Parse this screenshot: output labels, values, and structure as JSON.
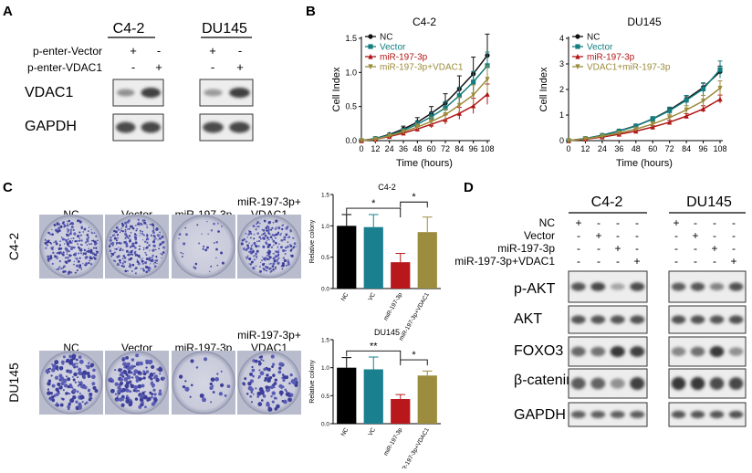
{
  "panels": {
    "a": "A",
    "b": "B",
    "c": "C",
    "d": "D"
  },
  "a": {
    "cell_lines": [
      "C4-2",
      "DU145"
    ],
    "row_labels": [
      "p-enter-Vector",
      "p-enter-VDAC1"
    ],
    "signs": [
      [
        "+",
        "-",
        "+",
        "-"
      ],
      [
        "-",
        "+",
        "-",
        "+"
      ]
    ],
    "blot_labels": [
      "VDAC1",
      "GAPDH"
    ]
  },
  "b": {
    "ylabel": "Cell Index",
    "xlabel": "Time (hours)",
    "xticks": [
      "0",
      "12",
      "24",
      "36",
      "48",
      "60",
      "72",
      "84",
      "96",
      "108"
    ],
    "colors": {
      "NC": "#111111",
      "Vector": "#137d7f",
      "miR": "#b01515",
      "combo": "#9c8c3d"
    }
  },
  "chart_data": [
    {
      "type": "line",
      "title": "C4-2",
      "xlabel": "Time (hours)",
      "ylabel": "Cell Index",
      "x": [
        0,
        12,
        24,
        36,
        48,
        60,
        72,
        84,
        96,
        108
      ],
      "ylim": [
        0,
        1.5
      ],
      "yticks": [
        "0.0",
        "0.5",
        "1.0",
        "1.5"
      ],
      "series": [
        {
          "name": "NC",
          "values": [
            0,
            0.03,
            0.09,
            0.17,
            0.27,
            0.4,
            0.55,
            0.76,
            0.98,
            1.25
          ]
        },
        {
          "name": "Vector",
          "values": [
            0,
            0.03,
            0.08,
            0.15,
            0.24,
            0.35,
            0.48,
            0.66,
            0.86,
            1.1
          ]
        },
        {
          "name": "miR-197-3p",
          "values": [
            0,
            0.02,
            0.06,
            0.11,
            0.17,
            0.24,
            0.31,
            0.4,
            0.51,
            0.68
          ]
        },
        {
          "name": "miR-197-3p+VDAC1",
          "values": [
            0,
            0.02,
            0.07,
            0.13,
            0.2,
            0.28,
            0.38,
            0.52,
            0.67,
            0.9
          ]
        }
      ],
      "legend": [
        "NC",
        "Vector",
        "miR-197-3p",
        "miR-197-3p+VDAC1"
      ]
    },
    {
      "type": "line",
      "title": "DU145",
      "xlabel": "Time (hours)",
      "ylabel": "Cell Index",
      "x": [
        0,
        12,
        24,
        36,
        48,
        60,
        72,
        84,
        96,
        108
      ],
      "ylim": [
        0,
        4
      ],
      "yticks": [
        "0",
        "1",
        "2",
        "3",
        "4"
      ],
      "series": [
        {
          "name": "NC",
          "values": [
            0,
            0.08,
            0.21,
            0.38,
            0.58,
            0.85,
            1.2,
            1.62,
            2.08,
            2.7
          ]
        },
        {
          "name": "Vector",
          "values": [
            0,
            0.08,
            0.2,
            0.37,
            0.57,
            0.84,
            1.17,
            1.58,
            2.02,
            2.78
          ]
        },
        {
          "name": "miR-197-3p",
          "values": [
            0,
            0.06,
            0.14,
            0.25,
            0.37,
            0.53,
            0.72,
            0.96,
            1.24,
            1.62
          ]
        },
        {
          "name": "VDAC1+miR-197-3p",
          "values": [
            0,
            0.07,
            0.17,
            0.3,
            0.45,
            0.65,
            0.9,
            1.2,
            1.55,
            2.05
          ]
        }
      ],
      "legend": [
        "NC",
        "Vector",
        "miR-197-3p",
        "VDAC1+miR-197-3p"
      ]
    },
    {
      "type": "bar",
      "title": "C4-2",
      "ylabel": "Relative colony",
      "categories": [
        "NC",
        "VC",
        "miR-197-3p",
        "miR-197-3p+VDAC1"
      ],
      "values": [
        1.0,
        0.98,
        0.42,
        0.9
      ],
      "errors": [
        0.18,
        0.2,
        0.14,
        0.24
      ],
      "ylim": [
        0,
        1.5
      ],
      "yticks": [
        "0.0",
        "0.5",
        "1.0",
        "1.5"
      ],
      "significance": [
        "*",
        "*"
      ]
    },
    {
      "type": "bar",
      "title": "DU145",
      "ylabel": "Relative colony",
      "categories": [
        "NC",
        "VC",
        "miR-197-3p",
        "miR-197-3p+VDAC1"
      ],
      "values": [
        1.0,
        0.97,
        0.44,
        0.86
      ],
      "errors": [
        0.18,
        0.22,
        0.08,
        0.08
      ],
      "ylim": [
        0,
        1.5
      ],
      "yticks": [
        "0.0",
        "0.5",
        "1.0",
        "1.5"
      ],
      "significance": [
        "**",
        "*"
      ]
    }
  ],
  "c": {
    "col_labels": [
      "NC",
      "Vector",
      "miR-197-3p",
      "miR-197-3p+"
    ],
    "col_label_line2": "VDAC1",
    "row_labels": [
      "C4-2",
      "DU145"
    ]
  },
  "d": {
    "cell_lines": [
      "C4-2",
      "DU145"
    ],
    "row_labels": [
      "NC",
      "Vector",
      "miR-197-3p",
      "miR-197-3p+VDAC1"
    ],
    "signs": [
      [
        "+",
        "-",
        "-",
        "-",
        "+",
        "-",
        "-",
        "-"
      ],
      [
        "-",
        "+",
        "-",
        "-",
        "-",
        "+",
        "-",
        "-"
      ],
      [
        "-",
        "-",
        "+",
        "-",
        "-",
        "-",
        "+",
        "-"
      ],
      [
        "-",
        "-",
        "-",
        "+",
        "-",
        "-",
        "-",
        "+"
      ]
    ],
    "blot_labels": [
      "p-AKT",
      "AKT",
      "FOXO3",
      "β-catenin",
      "GAPDH"
    ]
  }
}
